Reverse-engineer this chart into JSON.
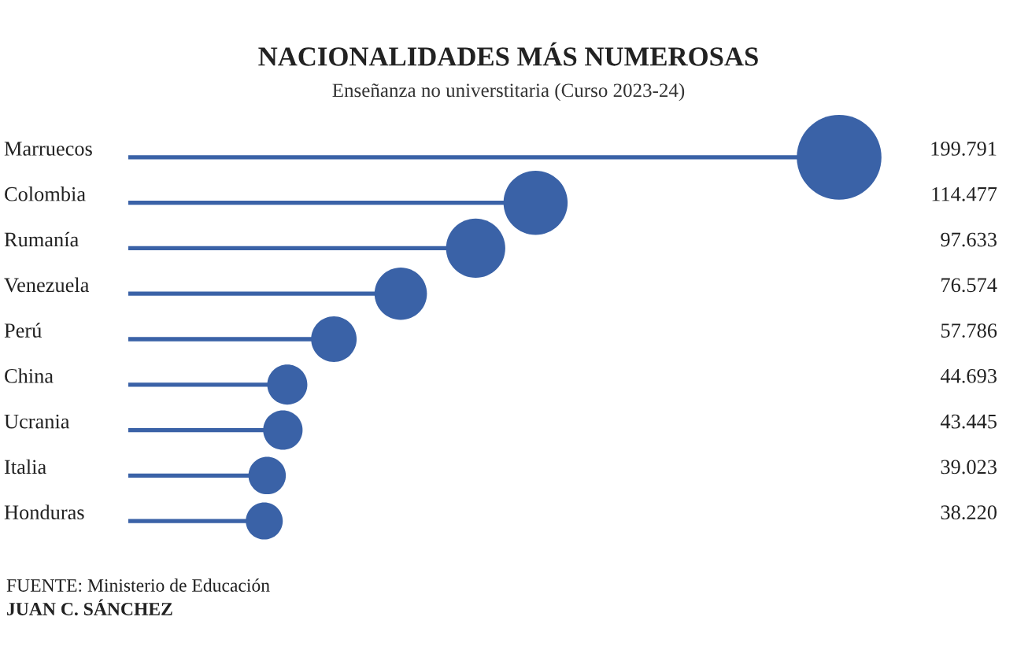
{
  "chart_data": {
    "type": "lollipop",
    "orientation": "horizontal",
    "title": "NACIONALIDADES MÁS NUMEROSAS",
    "subtitle": "Enseñanza no universtitaria (Curso 2023-24)",
    "categories": [
      "Marruecos",
      "Colombia",
      "Rumanía",
      "Venezuela",
      "Perú",
      "China",
      "Ucrania",
      "Italia",
      "Honduras"
    ],
    "values": [
      199791,
      114477,
      97633,
      76574,
      57786,
      44693,
      43445,
      39023,
      38220
    ],
    "value_labels": [
      "199.791",
      "114.477",
      "97.633",
      "76.574",
      "57.786",
      "44.693",
      "43.445",
      "39.023",
      "38.220"
    ],
    "sizes": [
      1,
      0.573,
      0.489,
      0.383,
      0.289,
      0.224,
      0.217,
      0.195,
      0.191
    ],
    "color": "#3a62a7",
    "marker": "circle",
    "annotations": [
      "FUENTE: Ministerio de Educación",
      "JUAN C. SÁNCHEZ"
    ]
  }
}
